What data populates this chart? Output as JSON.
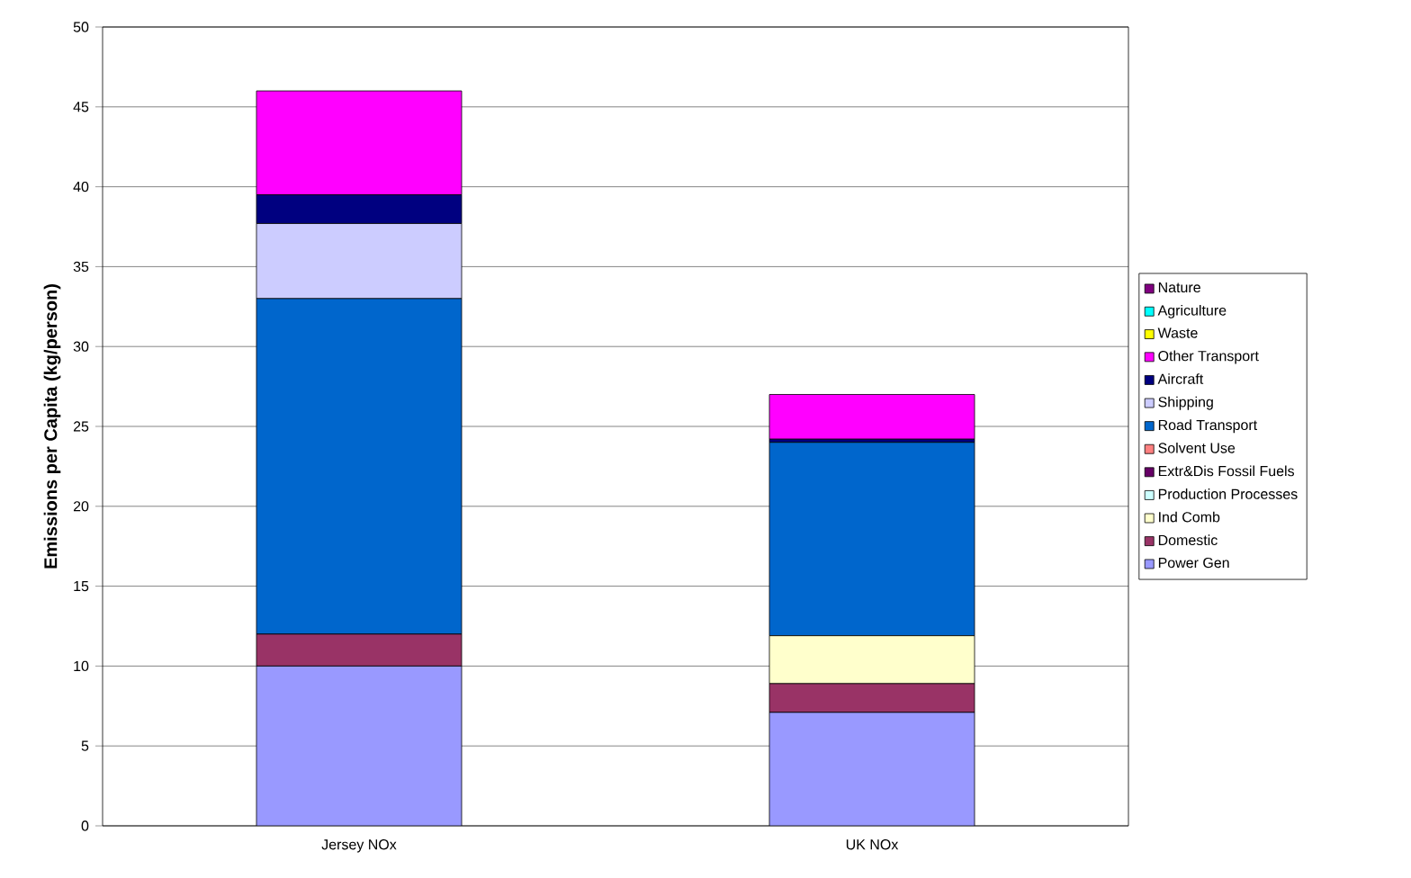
{
  "chart_data": {
    "type": "bar",
    "stacked": true,
    "ylabel": "Emissions per Capita (kg/person)",
    "categories": [
      "Jersey NOx",
      "UK NOx"
    ],
    "series": [
      {
        "name": "Power Gen",
        "color": "#9999ff",
        "values": [
          10,
          7.1
        ]
      },
      {
        "name": "Domestic",
        "color": "#993366",
        "values": [
          2,
          1.8
        ]
      },
      {
        "name": "Ind Comb",
        "color": "#ffffcc",
        "values": [
          0,
          3.0
        ]
      },
      {
        "name": "Production Processes",
        "color": "#ccffff",
        "values": [
          0,
          0
        ]
      },
      {
        "name": "Extr&Dis Fossil Fuels",
        "color": "#660066",
        "values": [
          0,
          0
        ]
      },
      {
        "name": "Solvent Use",
        "color": "#ff8080",
        "values": [
          0,
          0
        ]
      },
      {
        "name": "Road Transport",
        "color": "#0066cc",
        "values": [
          21,
          12.1
        ]
      },
      {
        "name": "Shipping",
        "color": "#ccccff",
        "values": [
          4.7,
          0
        ]
      },
      {
        "name": "Aircraft",
        "color": "#000080",
        "values": [
          1.8,
          0.2
        ]
      },
      {
        "name": "Other Transport",
        "color": "#ff00ff",
        "values": [
          6.5,
          2.8
        ]
      },
      {
        "name": "Waste",
        "color": "#ffff00",
        "values": [
          0,
          0
        ]
      },
      {
        "name": "Agriculture",
        "color": "#00ffff",
        "values": [
          0,
          0
        ]
      },
      {
        "name": "Nature",
        "color": "#800080",
        "values": [
          0,
          0
        ]
      }
    ],
    "ylim": [
      0,
      50
    ],
    "yticks": [
      0,
      5,
      10,
      15,
      20,
      25,
      30,
      35,
      40,
      45,
      50
    ],
    "grid": "y",
    "legend": "right"
  }
}
